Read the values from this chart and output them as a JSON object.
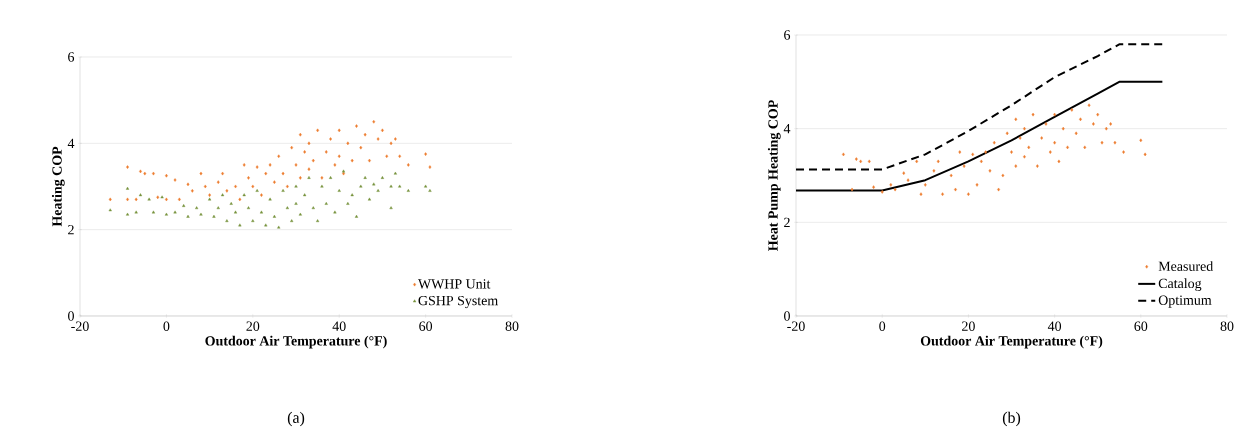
{
  "chart_data": [
    {
      "type": "scatter",
      "xlabel": "Outdoor Air Temperature (°F)",
      "ylabel": "Heating COP",
      "xlim": [
        -20,
        80
      ],
      "ylim": [
        0,
        6
      ],
      "xticks": [
        -20,
        0,
        20,
        40,
        60,
        80
      ],
      "yticks": [
        0,
        2,
        4,
        6
      ],
      "grid": "y",
      "legend": "bottom right",
      "annotations": [
        "(a)"
      ],
      "series": [
        {
          "name": "WWHP Unit",
          "color": "#ed7d31",
          "marker": "diamond",
          "x": [
            -13,
            -9,
            -9,
            -7,
            -6,
            -5,
            -3,
            -2,
            0,
            0,
            2,
            3,
            5,
            6,
            8,
            9,
            10,
            12,
            13,
            14,
            16,
            17,
            18,
            19,
            20,
            21,
            22,
            23,
            24,
            25,
            26,
            27,
            28,
            29,
            30,
            31,
            31,
            32,
            33,
            33,
            34,
            35,
            36,
            37,
            38,
            39,
            40,
            40,
            41,
            42,
            43,
            44,
            45,
            46,
            47,
            48,
            49,
            50,
            51,
            52,
            53,
            54,
            56,
            60,
            61
          ],
          "values": [
            2.7,
            3.45,
            2.7,
            2.7,
            3.35,
            3.3,
            3.3,
            2.75,
            3.25,
            2.7,
            3.15,
            2.7,
            3.05,
            2.9,
            3.3,
            3.0,
            2.8,
            3.1,
            3.3,
            2.9,
            3.0,
            2.7,
            3.5,
            3.2,
            3.0,
            3.45,
            2.8,
            3.3,
            3.5,
            3.1,
            3.7,
            3.3,
            3.0,
            3.9,
            3.5,
            4.2,
            3.2,
            3.8,
            4.0,
            3.4,
            3.6,
            4.3,
            3.2,
            3.8,
            4.1,
            3.5,
            4.3,
            3.7,
            3.3,
            4.0,
            3.6,
            4.4,
            3.9,
            4.2,
            3.6,
            4.5,
            4.1,
            4.3,
            3.7,
            4.0,
            4.1,
            3.7,
            3.5,
            3.75,
            3.45
          ]
        },
        {
          "name": "GSHP System",
          "color": "#77933c",
          "marker": "triangle",
          "x": [
            -13,
            -9,
            -9,
            -7,
            -6,
            -4,
            -3,
            -1,
            0,
            2,
            4,
            5,
            7,
            8,
            10,
            11,
            12,
            13,
            14,
            15,
            16,
            17,
            18,
            19,
            20,
            21,
            22,
            23,
            24,
            25,
            26,
            27,
            28,
            29,
            30,
            30,
            31,
            32,
            33,
            34,
            35,
            36,
            37,
            38,
            39,
            40,
            41,
            42,
            43,
            44,
            45,
            46,
            47,
            48,
            49,
            50,
            52,
            52,
            53,
            54,
            56,
            60,
            61
          ],
          "values": [
            2.45,
            2.95,
            2.35,
            2.4,
            2.8,
            2.7,
            2.4,
            2.75,
            2.35,
            2.4,
            2.55,
            2.3,
            2.5,
            2.35,
            2.7,
            2.3,
            2.5,
            2.8,
            2.2,
            2.6,
            2.4,
            2.1,
            2.8,
            2.5,
            2.2,
            2.9,
            2.4,
            2.1,
            2.7,
            2.3,
            2.05,
            2.9,
            2.5,
            2.2,
            3.0,
            2.6,
            2.35,
            2.8,
            3.2,
            2.5,
            2.2,
            3.0,
            2.6,
            3.2,
            2.4,
            2.9,
            3.35,
            2.6,
            2.8,
            2.3,
            3.0,
            3.2,
            2.7,
            3.05,
            2.9,
            3.2,
            3.0,
            2.5,
            3.3,
            3.0,
            2.9,
            3.0,
            2.9
          ]
        }
      ]
    },
    {
      "type": "scatter",
      "xlabel": "Outdoor Air Temperature (°F)",
      "ylabel": "Heat Pump Heating COP",
      "xlim": [
        -20,
        80
      ],
      "ylim": [
        0,
        6
      ],
      "xticks": [
        -20,
        0,
        20,
        40,
        60,
        80
      ],
      "yticks": [
        0,
        2,
        4,
        6
      ],
      "grid": "y",
      "legend": "bottom right",
      "annotations": [
        "(b)"
      ],
      "series": [
        {
          "name": "Measured",
          "color": "#ed7d31",
          "marker": "diamond",
          "x": [
            -9,
            -7,
            -6,
            -5,
            -3,
            -2,
            0,
            2,
            3,
            5,
            6,
            8,
            9,
            10,
            12,
            13,
            14,
            16,
            17,
            18,
            19,
            20,
            21,
            22,
            23,
            24,
            25,
            26,
            27,
            28,
            29,
            30,
            31,
            31,
            32,
            33,
            33,
            34,
            35,
            36,
            37,
            38,
            39,
            40,
            40,
            41,
            42,
            43,
            44,
            45,
            46,
            47,
            48,
            49,
            50,
            51,
            52,
            53,
            54,
            56,
            60,
            61
          ],
          "values": [
            3.45,
            2.7,
            3.35,
            3.3,
            3.3,
            2.75,
            2.65,
            2.8,
            2.7,
            3.05,
            2.9,
            3.3,
            2.6,
            2.8,
            3.1,
            3.3,
            2.6,
            3.0,
            2.7,
            3.5,
            3.2,
            2.6,
            3.45,
            2.8,
            3.3,
            3.5,
            3.1,
            3.7,
            2.7,
            3.0,
            3.9,
            3.5,
            4.2,
            3.2,
            3.8,
            4.0,
            3.4,
            3.6,
            4.3,
            3.2,
            3.8,
            4.1,
            3.5,
            4.3,
            3.7,
            3.3,
            4.0,
            3.6,
            4.4,
            3.9,
            4.2,
            3.6,
            4.5,
            4.1,
            4.3,
            3.7,
            4.0,
            4.1,
            3.7,
            3.5,
            3.75,
            3.45
          ]
        },
        {
          "name": "Catalog",
          "type": "line",
          "color": "#000000",
          "marker": "none",
          "line_style": "solid",
          "x": [
            -20,
            0,
            10,
            20,
            30,
            40,
            50,
            55,
            65
          ],
          "values": [
            2.68,
            2.68,
            2.9,
            3.3,
            3.75,
            4.25,
            4.75,
            5.0,
            5.0
          ]
        },
        {
          "name": "Optimum",
          "type": "line",
          "color": "#000000",
          "marker": "none",
          "line_style": "dashed",
          "x": [
            -20,
            0,
            10,
            20,
            30,
            40,
            50,
            55,
            65
          ],
          "values": [
            3.13,
            3.13,
            3.45,
            3.95,
            4.5,
            5.1,
            5.55,
            5.8,
            5.8
          ]
        }
      ]
    }
  ]
}
